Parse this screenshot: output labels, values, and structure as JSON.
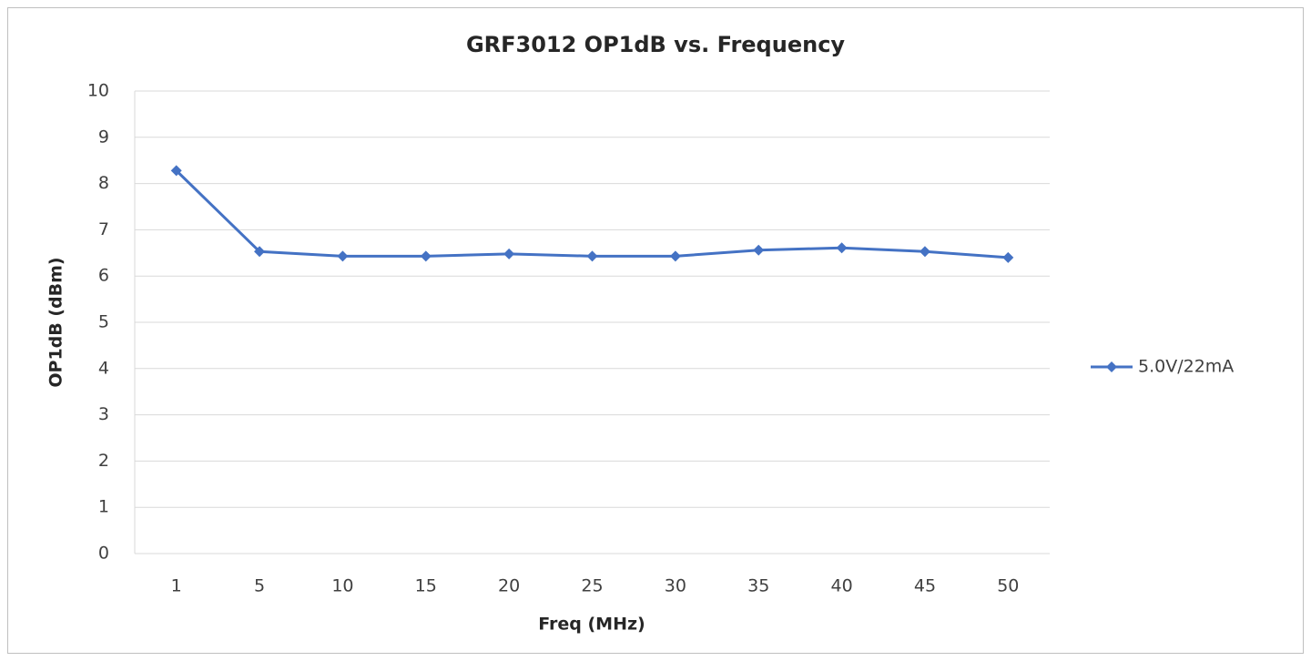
{
  "chart_data": {
    "type": "line",
    "title": "GRF3012 OP1dB vs. Frequency",
    "x_label": "Freq (MHz)",
    "y_label": "OP1dB (dBm)",
    "categories": [
      "1",
      "5",
      "10",
      "15",
      "20",
      "25",
      "30",
      "35",
      "40",
      "45",
      "50"
    ],
    "series": [
      {
        "name": "5.0V/22mA",
        "color": "#4472c4",
        "values": [
          8.28,
          6.53,
          6.43,
          6.43,
          6.48,
          6.43,
          6.43,
          6.56,
          6.61,
          6.53,
          6.4
        ]
      }
    ],
    "ylim": [
      0,
      10
    ],
    "yticks": [
      0,
      1,
      2,
      3,
      4,
      5,
      6,
      7,
      8,
      9,
      10
    ],
    "grid": true,
    "legend": "right"
  }
}
